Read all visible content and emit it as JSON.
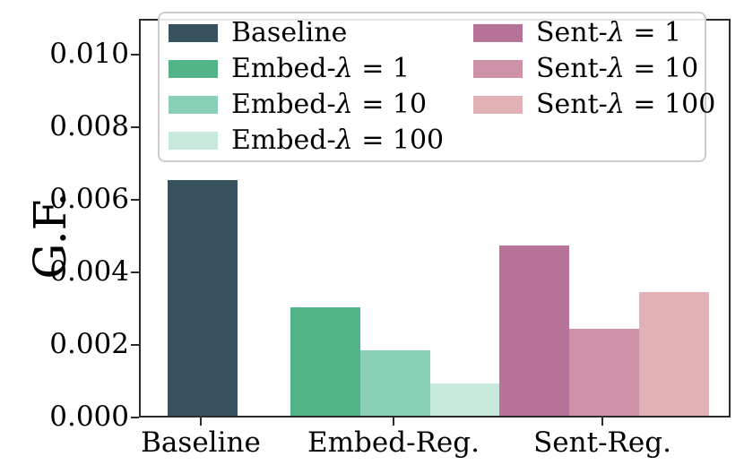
{
  "chart_data": {
    "type": "bar",
    "title": "",
    "xlabel": "",
    "ylabel": "G.F.",
    "ylim": [
      0,
      0.011
    ],
    "yticks": [
      0,
      0.002,
      0.004,
      0.006,
      0.008,
      0.01
    ],
    "ytick_decimals": 3,
    "grid": false,
    "legend_position": "upper center inside plot, 2 columns, framed rounded box",
    "categories": [
      "Baseline",
      "Embed-Reg.",
      "Sent-Reg."
    ],
    "series": [
      {
        "name": "Baseline",
        "category": "Baseline",
        "value": 0.0065,
        "color": "#37515F"
      },
      {
        "name": "Embed-λ = 1",
        "category": "Embed-Reg.",
        "value": 0.003,
        "color": "#52B489"
      },
      {
        "name": "Embed-λ = 10",
        "category": "Embed-Reg.",
        "value": 0.0018,
        "color": "#8AD0B6"
      },
      {
        "name": "Embed-λ = 100",
        "category": "Embed-Reg.",
        "value": 0.0009,
        "color": "#C6E9DC"
      },
      {
        "name": "Sent-λ = 1",
        "category": "Sent-Reg.",
        "value": 0.0047,
        "color": "#B77397"
      },
      {
        "name": "Sent-λ = 10",
        "category": "Sent-Reg.",
        "value": 0.0024,
        "color": "#CE92A8"
      },
      {
        "name": "Sent-λ = 100",
        "category": "Sent-Reg.",
        "value": 0.0034,
        "color": "#E1B1B6"
      }
    ],
    "legend_columns": [
      [
        "Baseline",
        "Embed-λ = 1",
        "Embed-λ = 10",
        "Embed-λ = 100"
      ],
      [
        "Sent-λ = 1",
        "Sent-λ = 10",
        "Sent-λ = 100"
      ]
    ],
    "colors": {
      "spine": "#2b2b2b",
      "legend_border": "#cccccc",
      "background": "#ffffff"
    }
  }
}
